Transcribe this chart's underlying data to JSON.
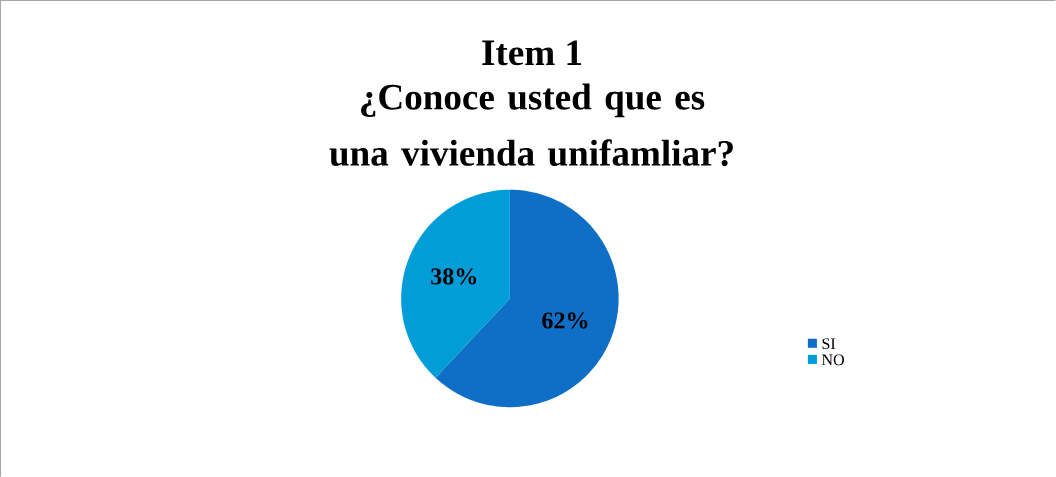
{
  "chart_data": {
    "type": "pie",
    "title": "Item 1",
    "subtitle": "¿Conoce usted que es una vivienda unifamliar?",
    "categories": [
      "SI",
      "NO"
    ],
    "values": [
      62,
      38
    ],
    "colors": [
      "#0f6fc6",
      "#009dd9"
    ],
    "value_labels": [
      "62%",
      "38%"
    ],
    "legend": "right"
  }
}
